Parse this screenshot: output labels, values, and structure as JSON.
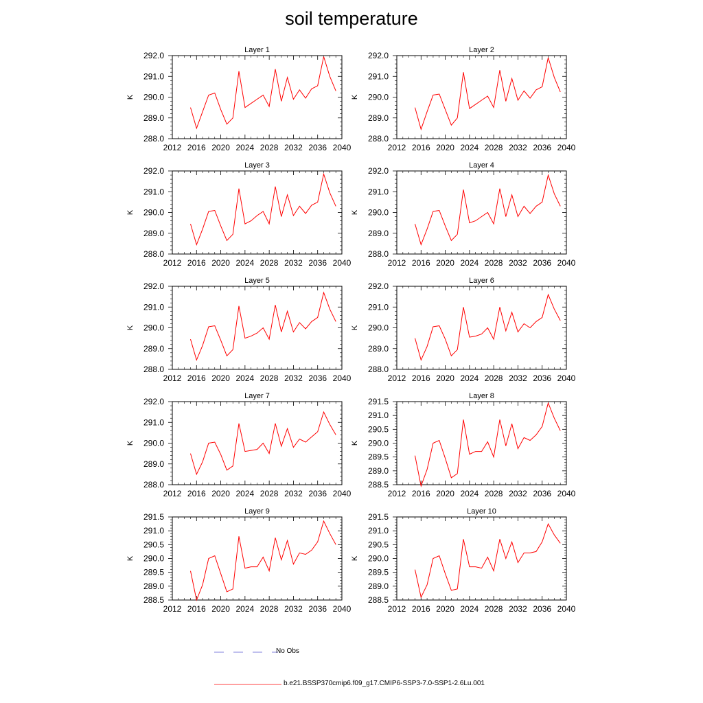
{
  "title": "soil temperature",
  "legend": {
    "no_obs_label": "No Obs",
    "no_obs_color": "#5a5ad2",
    "run_label": "b.e21.BSSP370cmip6.f09_g17.CMIP6-SSP3-7.0-SSP1-2.6Lu.001",
    "run_color": "#ff0000"
  },
  "chart_data": [
    {
      "type": "line",
      "title": "Layer 1",
      "ylabel": "K",
      "xlim": [
        2012,
        2040
      ],
      "ylim": [
        288.0,
        292.0
      ],
      "xticks": [
        2012,
        2016,
        2020,
        2024,
        2028,
        2032,
        2036,
        2040
      ],
      "yticks": [
        "288.0",
        "289.0",
        "290.0",
        "291.0",
        "292.0"
      ],
      "x": [
        2015,
        2016,
        2017,
        2018,
        2019,
        2020,
        2021,
        2022,
        2023,
        2024,
        2025,
        2026,
        2027,
        2028,
        2029,
        2030,
        2031,
        2032,
        2033,
        2034,
        2035,
        2036,
        2037,
        2038,
        2039
      ],
      "values": [
        289.5,
        288.5,
        289.3,
        290.1,
        290.2,
        289.4,
        288.7,
        289.0,
        291.25,
        289.5,
        289.7,
        289.9,
        290.1,
        289.55,
        291.35,
        289.8,
        290.95,
        289.9,
        290.35,
        289.95,
        290.4,
        290.55,
        291.95,
        291.0,
        290.3
      ]
    },
    {
      "type": "line",
      "title": "Layer 2",
      "ylabel": "K",
      "xlim": [
        2012,
        2040
      ],
      "ylim": [
        288.0,
        292.0
      ],
      "xticks": [
        2012,
        2016,
        2020,
        2024,
        2028,
        2032,
        2036,
        2040
      ],
      "yticks": [
        "288.0",
        "289.0",
        "290.0",
        "291.0",
        "292.0"
      ],
      "x": [
        2015,
        2016,
        2017,
        2018,
        2019,
        2020,
        2021,
        2022,
        2023,
        2024,
        2025,
        2026,
        2027,
        2028,
        2029,
        2030,
        2031,
        2032,
        2033,
        2034,
        2035,
        2036,
        2037,
        2038,
        2039
      ],
      "values": [
        289.5,
        288.45,
        289.3,
        290.1,
        290.15,
        289.4,
        288.65,
        289.0,
        291.2,
        289.45,
        289.65,
        289.85,
        290.05,
        289.5,
        291.3,
        289.8,
        290.9,
        289.85,
        290.3,
        289.95,
        290.35,
        290.5,
        291.9,
        290.95,
        290.25
      ]
    },
    {
      "type": "line",
      "title": "Layer 3",
      "ylabel": "K",
      "xlim": [
        2012,
        2040
      ],
      "ylim": [
        288.0,
        292.0
      ],
      "xticks": [
        2012,
        2016,
        2020,
        2024,
        2028,
        2032,
        2036,
        2040
      ],
      "yticks": [
        "288.0",
        "289.0",
        "290.0",
        "291.0",
        "292.0"
      ],
      "x": [
        2015,
        2016,
        2017,
        2018,
        2019,
        2020,
        2021,
        2022,
        2023,
        2024,
        2025,
        2026,
        2027,
        2028,
        2029,
        2030,
        2031,
        2032,
        2033,
        2034,
        2035,
        2036,
        2037,
        2038,
        2039
      ],
      "values": [
        289.45,
        288.45,
        289.2,
        290.05,
        290.1,
        289.35,
        288.65,
        288.95,
        291.15,
        289.45,
        289.6,
        289.85,
        290.05,
        289.45,
        291.25,
        289.8,
        290.85,
        289.85,
        290.3,
        289.95,
        290.35,
        290.5,
        291.85,
        290.95,
        290.3
      ]
    },
    {
      "type": "line",
      "title": "Layer 4",
      "ylabel": "K",
      "xlim": [
        2012,
        2040
      ],
      "ylim": [
        288.0,
        292.0
      ],
      "xticks": [
        2012,
        2016,
        2020,
        2024,
        2028,
        2032,
        2036,
        2040
      ],
      "yticks": [
        "288.0",
        "289.0",
        "290.0",
        "291.0",
        "292.0"
      ],
      "x": [
        2015,
        2016,
        2017,
        2018,
        2019,
        2020,
        2021,
        2022,
        2023,
        2024,
        2025,
        2026,
        2027,
        2028,
        2029,
        2030,
        2031,
        2032,
        2033,
        2034,
        2035,
        2036,
        2037,
        2038,
        2039
      ],
      "values": [
        289.45,
        288.45,
        289.2,
        290.05,
        290.1,
        289.35,
        288.65,
        288.95,
        291.1,
        289.5,
        289.6,
        289.8,
        290.0,
        289.45,
        291.15,
        289.8,
        290.85,
        289.8,
        290.3,
        289.95,
        290.3,
        290.5,
        291.8,
        290.9,
        290.3
      ]
    },
    {
      "type": "line",
      "title": "Layer 5",
      "ylabel": "K",
      "xlim": [
        2012,
        2040
      ],
      "ylim": [
        288.0,
        292.0
      ],
      "xticks": [
        2012,
        2016,
        2020,
        2024,
        2028,
        2032,
        2036,
        2040
      ],
      "yticks": [
        "288.0",
        "289.0",
        "290.0",
        "291.0",
        "292.0"
      ],
      "x": [
        2015,
        2016,
        2017,
        2018,
        2019,
        2020,
        2021,
        2022,
        2023,
        2024,
        2025,
        2026,
        2027,
        2028,
        2029,
        2030,
        2031,
        2032,
        2033,
        2034,
        2035,
        2036,
        2037,
        2038,
        2039
      ],
      "values": [
        289.45,
        288.45,
        289.15,
        290.05,
        290.1,
        289.4,
        288.65,
        288.95,
        291.05,
        289.5,
        289.6,
        289.75,
        290.0,
        289.45,
        291.1,
        289.8,
        290.8,
        289.8,
        290.25,
        289.95,
        290.3,
        290.5,
        291.7,
        290.9,
        290.3
      ]
    },
    {
      "type": "line",
      "title": "Layer 6",
      "ylabel": "K",
      "xlim": [
        2012,
        2040
      ],
      "ylim": [
        288.0,
        292.0
      ],
      "xticks": [
        2012,
        2016,
        2020,
        2024,
        2028,
        2032,
        2036,
        2040
      ],
      "yticks": [
        "288.0",
        "289.0",
        "290.0",
        "291.0",
        "292.0"
      ],
      "x": [
        2015,
        2016,
        2017,
        2018,
        2019,
        2020,
        2021,
        2022,
        2023,
        2024,
        2025,
        2026,
        2027,
        2028,
        2029,
        2030,
        2031,
        2032,
        2033,
        2034,
        2035,
        2036,
        2037,
        2038,
        2039
      ],
      "values": [
        289.5,
        288.45,
        289.1,
        290.05,
        290.1,
        289.45,
        288.65,
        288.95,
        291.0,
        289.55,
        289.6,
        289.7,
        290.0,
        289.45,
        291.0,
        289.85,
        290.75,
        289.8,
        290.2,
        290.0,
        290.3,
        290.5,
        291.6,
        290.9,
        290.35
      ]
    },
    {
      "type": "line",
      "title": "Layer 7",
      "ylabel": "K",
      "xlim": [
        2012,
        2040
      ],
      "ylim": [
        288.0,
        292.0
      ],
      "xticks": [
        2012,
        2016,
        2020,
        2024,
        2028,
        2032,
        2036,
        2040
      ],
      "yticks": [
        "288.0",
        "289.0",
        "290.0",
        "291.0",
        "292.0"
      ],
      "x": [
        2015,
        2016,
        2017,
        2018,
        2019,
        2020,
        2021,
        2022,
        2023,
        2024,
        2025,
        2026,
        2027,
        2028,
        2029,
        2030,
        2031,
        2032,
        2033,
        2034,
        2035,
        2036,
        2037,
        2038,
        2039
      ],
      "values": [
        289.5,
        288.5,
        289.1,
        290.0,
        290.05,
        289.45,
        288.7,
        288.9,
        290.95,
        289.6,
        289.65,
        289.7,
        290.0,
        289.5,
        290.95,
        289.85,
        290.7,
        289.8,
        290.2,
        290.05,
        290.3,
        290.55,
        291.5,
        290.9,
        290.4
      ]
    },
    {
      "type": "line",
      "title": "Layer 8",
      "ylabel": "K",
      "xlim": [
        2012,
        2040
      ],
      "ylim": [
        288.5,
        291.5
      ],
      "xticks": [
        2012,
        2016,
        2020,
        2024,
        2028,
        2032,
        2036,
        2040
      ],
      "yticks": [
        "288.5",
        "289.0",
        "289.5",
        "290.0",
        "290.5",
        "291.0",
        "291.5"
      ],
      "x": [
        2015,
        2016,
        2017,
        2018,
        2019,
        2020,
        2021,
        2022,
        2023,
        2024,
        2025,
        2026,
        2027,
        2028,
        2029,
        2030,
        2031,
        2032,
        2033,
        2034,
        2035,
        2036,
        2037,
        2038,
        2039
      ],
      "values": [
        289.55,
        288.45,
        289.05,
        290.0,
        290.1,
        289.45,
        288.75,
        288.9,
        290.85,
        289.6,
        289.7,
        289.7,
        290.05,
        289.5,
        290.85,
        289.9,
        290.7,
        289.8,
        290.2,
        290.1,
        290.3,
        290.6,
        291.45,
        290.9,
        290.45
      ]
    },
    {
      "type": "line",
      "title": "Layer 9",
      "ylabel": "K",
      "xlim": [
        2012,
        2040
      ],
      "ylim": [
        288.5,
        291.5
      ],
      "xticks": [
        2012,
        2016,
        2020,
        2024,
        2028,
        2032,
        2036,
        2040
      ],
      "yticks": [
        "288.5",
        "289.0",
        "289.5",
        "290.0",
        "290.5",
        "291.0",
        "291.5"
      ],
      "x": [
        2015,
        2016,
        2017,
        2018,
        2019,
        2020,
        2021,
        2022,
        2023,
        2024,
        2025,
        2026,
        2027,
        2028,
        2029,
        2030,
        2031,
        2032,
        2033,
        2034,
        2035,
        2036,
        2037,
        2038,
        2039
      ],
      "values": [
        289.55,
        288.5,
        289.05,
        290.0,
        290.1,
        289.45,
        288.8,
        288.9,
        290.8,
        289.65,
        289.7,
        289.7,
        290.05,
        289.55,
        290.75,
        289.95,
        290.65,
        289.8,
        290.2,
        290.15,
        290.3,
        290.6,
        291.35,
        290.9,
        290.5
      ]
    },
    {
      "type": "line",
      "title": "Layer 10",
      "ylabel": "K",
      "xlim": [
        2012,
        2040
      ],
      "ylim": [
        288.5,
        291.5
      ],
      "xticks": [
        2012,
        2016,
        2020,
        2024,
        2028,
        2032,
        2036,
        2040
      ],
      "yticks": [
        "288.5",
        "289.0",
        "289.5",
        "290.0",
        "290.5",
        "291.0",
        "291.5"
      ],
      "x": [
        2015,
        2016,
        2017,
        2018,
        2019,
        2020,
        2021,
        2022,
        2023,
        2024,
        2025,
        2026,
        2027,
        2028,
        2029,
        2030,
        2031,
        2032,
        2033,
        2034,
        2035,
        2036,
        2037,
        2038,
        2039
      ],
      "values": [
        289.6,
        288.6,
        289.05,
        290.0,
        290.1,
        289.45,
        288.85,
        288.9,
        290.7,
        289.7,
        289.7,
        289.65,
        290.05,
        289.55,
        290.7,
        290.0,
        290.6,
        289.85,
        290.2,
        290.2,
        290.25,
        290.6,
        291.25,
        290.85,
        290.55
      ]
    }
  ]
}
